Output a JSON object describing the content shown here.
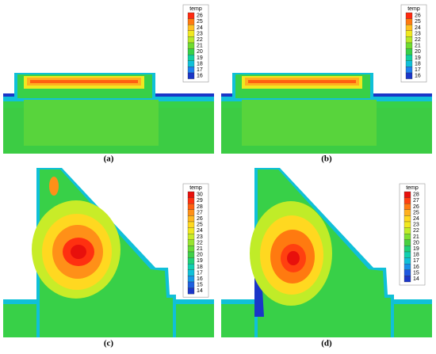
{
  "chart_data": [
    {
      "type": "contour",
      "colorbar_title": "temp",
      "caption": "(a)",
      "levels": [
        26,
        25,
        24,
        23,
        22,
        21,
        20,
        19,
        18,
        17,
        16
      ],
      "colors": [
        "#ff2a10",
        "#ff7a10",
        "#ffc020",
        "#f0e820",
        "#b8e828",
        "#70dc30",
        "#38d048",
        "#10d0a0",
        "#10c0d8",
        "#1e80f0",
        "#1a36c8"
      ]
    },
    {
      "type": "contour",
      "colorbar_title": "temp",
      "caption": "(b)",
      "levels": [
        26,
        25,
        24,
        23,
        22,
        21,
        20,
        19,
        18,
        17,
        16
      ],
      "colors": [
        "#ff2a10",
        "#ff7a10",
        "#ffc020",
        "#f0e820",
        "#b8e828",
        "#70dc30",
        "#38d048",
        "#10d0a0",
        "#10c0d8",
        "#1e80f0",
        "#1a36c8"
      ]
    },
    {
      "type": "contour",
      "colorbar_title": "temp",
      "caption": "(c)",
      "levels": [
        30,
        29,
        28,
        27,
        26,
        25,
        24,
        23,
        22,
        21,
        20,
        19,
        18,
        17,
        16,
        15,
        14
      ],
      "colors": [
        "#e8100c",
        "#ff3010",
        "#ff6010",
        "#ff9018",
        "#ffb820",
        "#ffd820",
        "#f0e820",
        "#c8ec28",
        "#98e430",
        "#68dc38",
        "#40d048",
        "#20d078",
        "#10d0b0",
        "#10c0d8",
        "#1898e8",
        "#1e60e0",
        "#1a36c8"
      ]
    },
    {
      "type": "contour",
      "colorbar_title": "temp",
      "caption": "(d)",
      "levels": [
        28,
        27,
        26,
        25,
        24,
        23,
        22,
        21,
        20,
        19,
        18,
        17,
        16,
        15,
        14
      ],
      "colors": [
        "#e8100c",
        "#ff4010",
        "#ff7a10",
        "#ffb020",
        "#ffd820",
        "#f0e820",
        "#c0ec28",
        "#80e030",
        "#48d040",
        "#20d078",
        "#10d0b0",
        "#10c0d8",
        "#1890e8",
        "#1e58e0",
        "#1a36c8"
      ]
    }
  ]
}
